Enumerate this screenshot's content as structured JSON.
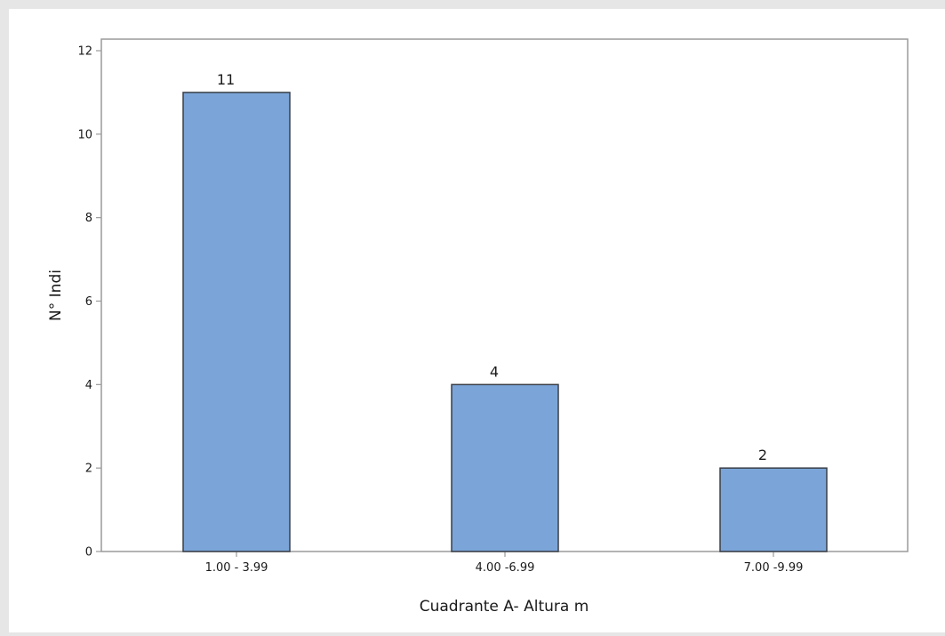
{
  "chart_data": {
    "type": "bar",
    "categories": [
      "1.00 - 3.99",
      "4.00 -6.99",
      "7.00 -9.99"
    ],
    "values": [
      11,
      4,
      2
    ],
    "data_labels": [
      "11",
      "4",
      "2"
    ],
    "title": "",
    "xlabel": "Cuadrante A- Altura m",
    "ylabel": "N° Indi",
    "ylim": [
      0,
      12
    ],
    "yticks": [
      0,
      2,
      4,
      6,
      8,
      10,
      12
    ],
    "ytick_labels": [
      "0",
      "2",
      "4",
      "6",
      "8",
      "10",
      "12"
    ],
    "grid": false,
    "legend": "none"
  },
  "colors": {
    "background": "#e6e6e6",
    "plot_area": "#ffffff",
    "bar_fill": "#7ba5d8",
    "bar_stroke": "#3a3f47",
    "frame": "#9a9a9a"
  }
}
